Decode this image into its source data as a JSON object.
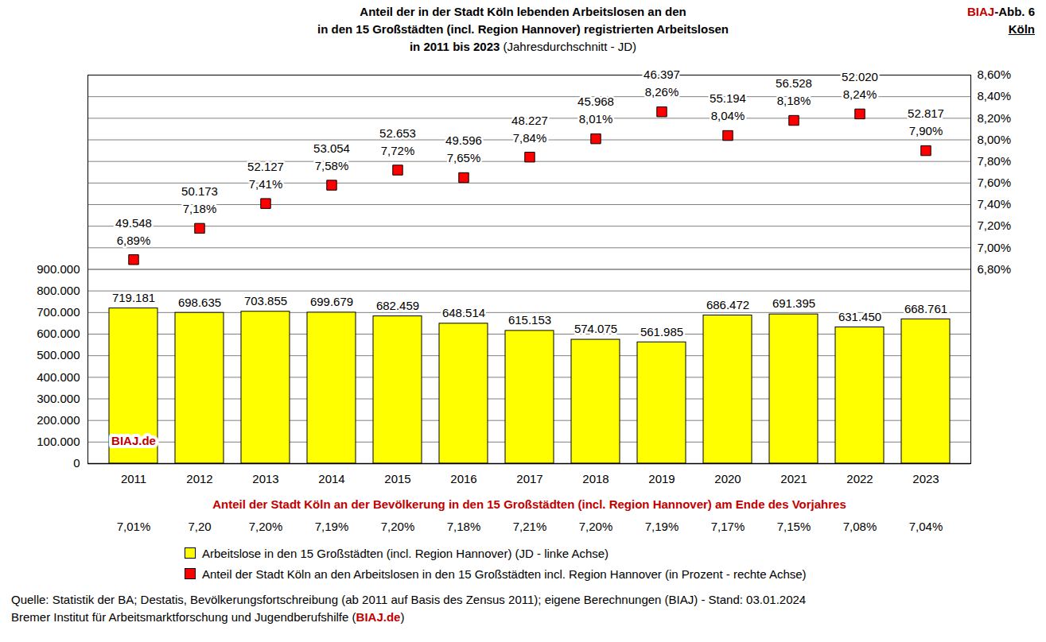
{
  "chart_data": {
    "type": "bar",
    "title": [
      "Anteil der in der Stadt Köln lebenden Arbeitslosen an den",
      "in den 15 Großstädten (incl. Region Hannover) registrierten Arbeitslosen",
      "in 2011 bis 2023"
    ],
    "subtitle": "(Jahresdurchschnitt - JD)",
    "figure_label": "BIAJ-Abb. 6",
    "figure_city": "Köln",
    "categories": [
      "2011",
      "2012",
      "2013",
      "2014",
      "2015",
      "2016",
      "2017",
      "2018",
      "2019",
      "2020",
      "2021",
      "2022",
      "2023"
    ],
    "series": [
      {
        "name": "Arbeitslose in den 15 Großstädten (incl. Region Hannover) (JD - linke Achse)",
        "type": "bar",
        "color": "#ffff00",
        "values": [
          719181,
          698635,
          703855,
          699679,
          682459,
          648514,
          615153,
          574075,
          561985,
          686472,
          691395,
          631450,
          668761
        ],
        "value_labels": [
          "719.181",
          "698.635",
          "703.855",
          "699.679",
          "682.459",
          "648.514",
          "615.153",
          "574.075",
          "561.985",
          "686.472",
          "691.395",
          "631.450",
          "668.761"
        ]
      },
      {
        "name": "Anteil der Stadt Köln an den Arbeitslosen in den 15 Großstädten incl. Region Hannover (in Prozent - rechte Achse)",
        "type": "scatter",
        "axis": "y2",
        "color": "#ff0000",
        "marker": "square",
        "values": [
          6.89,
          7.18,
          7.41,
          7.58,
          7.72,
          7.65,
          7.84,
          8.01,
          8.26,
          8.04,
          8.18,
          8.24,
          7.9
        ],
        "value_labels": [
          "6,89%",
          "7,18%",
          "7,41%",
          "7,58%",
          "7,72%",
          "7,65%",
          "7,84%",
          "8,01%",
          "8,26%",
          "8,04%",
          "8,18%",
          "8,24%",
          "7,90%"
        ],
        "counts": [
          49548,
          50173,
          52127,
          53054,
          52653,
          49596,
          48227,
          45968,
          46397,
          55194,
          56528,
          52020,
          52817
        ],
        "count_labels": [
          "49.548",
          "50.173",
          "52.127",
          "53.054",
          "52.653",
          "49.596",
          "48.227",
          "45.968",
          "46.397",
          "55.194",
          "56.528",
          "52.020",
          "52.817"
        ]
      }
    ],
    "ylim": [
      0,
      1800000
    ],
    "yticks": [
      0,
      {
        "value": 100000,
        "label": "100.000"
      },
      {
        "value": 200000,
        "label": "200.000"
      },
      {
        "value": 300000,
        "label": "300.000"
      },
      {
        "value": 400000,
        "label": "400.000"
      },
      {
        "value": 500000,
        "label": "500.000"
      },
      {
        "value": 600000,
        "label": "600.000"
      },
      {
        "value": 700000,
        "label": "700.000"
      },
      {
        "value": 800000,
        "label": "800.000"
      },
      {
        "value": 900000,
        "label": "900.000"
      }
    ],
    "y2lim": [
      5.0,
      8.6
    ],
    "y2ticks": [
      {
        "value": 6.8,
        "label": "6,80%"
      },
      {
        "value": 7.0,
        "label": "7,00%"
      },
      {
        "value": 7.2,
        "label": "7,20%"
      },
      {
        "value": 7.4,
        "label": "7,40%"
      },
      {
        "value": 7.6,
        "label": "7,60%"
      },
      {
        "value": 7.8,
        "label": "7,80%"
      },
      {
        "value": 8.0,
        "label": "8,00%"
      },
      {
        "value": 8.2,
        "label": "8,20%"
      },
      {
        "value": 8.4,
        "label": "8,40%"
      },
      {
        "value": 8.6,
        "label": "8,60%"
      }
    ],
    "grid": true,
    "data_labels": true,
    "legend": "bottom",
    "population_share": {
      "title": "Anteil der Stadt Köln an der Bevölkerung in den 15 Großstädten (incl. Region Hannover) am Ende des Vorjahres",
      "values": [
        7.01,
        7.2,
        7.2,
        7.19,
        7.2,
        7.18,
        7.21,
        7.2,
        7.19,
        7.17,
        7.15,
        7.08,
        7.04
      ],
      "value_labels": [
        "7,01%",
        "7,20",
        "7,20%",
        "7,19%",
        "7,20%",
        "7,18%",
        "7,21%",
        "7,20%",
        "7,19%",
        "7,17%",
        "7,15%",
        "7,08%",
        "7,04%"
      ]
    },
    "watermark": "BIAJ.de",
    "source": [
      "Quelle: Statistik der BA; Destatis, Bevölkerungsfortschreibung (ab 2011 auf Basis des Zensus 2011); eigene Berechnungen (BIAJ) - Stand: 03.01.2024",
      "Bremer Institut für Arbeitsmarktforschung und Jugendberufshilfe (BIAJ.de)"
    ]
  }
}
